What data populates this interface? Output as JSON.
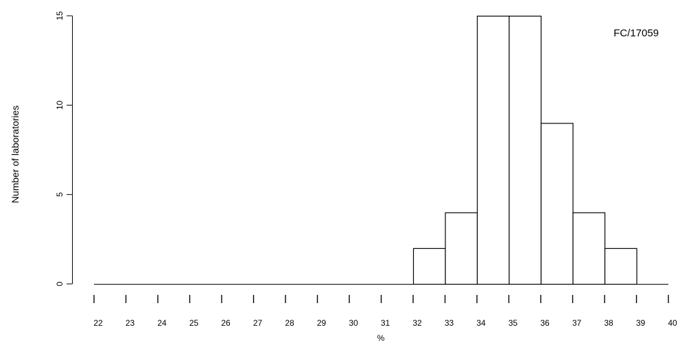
{
  "chart_data": {
    "type": "bar",
    "title": "",
    "xlabel": "%",
    "ylabel": "Number of laboratories",
    "annotation": "FC/17059",
    "bin_edges": [
      22,
      23,
      24,
      25,
      26,
      27,
      28,
      29,
      30,
      31,
      32,
      33,
      34,
      35,
      36,
      37,
      38,
      39,
      40
    ],
    "values": [
      0,
      0,
      0,
      0,
      0,
      0,
      0,
      0,
      0,
      0,
      2,
      4,
      15,
      15,
      9,
      4,
      2,
      0
    ],
    "x_ticks": [
      22,
      23,
      24,
      25,
      26,
      27,
      28,
      29,
      30,
      31,
      32,
      33,
      34,
      35,
      36,
      37,
      38,
      39,
      40
    ],
    "y_ticks": [
      0,
      5,
      10,
      15
    ],
    "xlim": [
      22,
      40
    ],
    "ylim": [
      0,
      15
    ],
    "grid": false,
    "bar_fill": "#ffffff",
    "bar_stroke": "#000000"
  }
}
